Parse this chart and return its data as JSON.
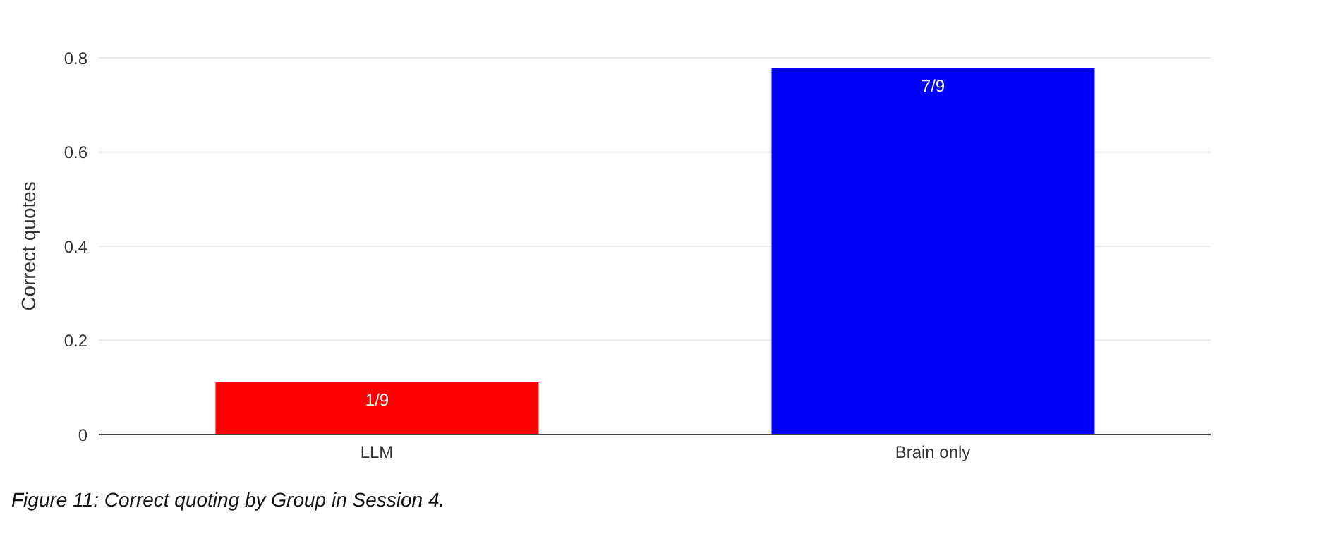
{
  "chart_data": {
    "type": "bar",
    "ylabel": "Correct quotes",
    "categories": [
      "LLM",
      "Brain only"
    ],
    "values": [
      0.111,
      0.778
    ],
    "colors": [
      "#ff0000",
      "#0000ff"
    ],
    "value_labels": [
      "1/9",
      "7/9"
    ],
    "ylim": [
      0,
      0.8
    ],
    "yticks": [
      0,
      0.2,
      0.4,
      0.6,
      0.8
    ],
    "grid": "y",
    "annotations": [
      "Figure 11: Correct quoting by Group in Session 4."
    ]
  }
}
